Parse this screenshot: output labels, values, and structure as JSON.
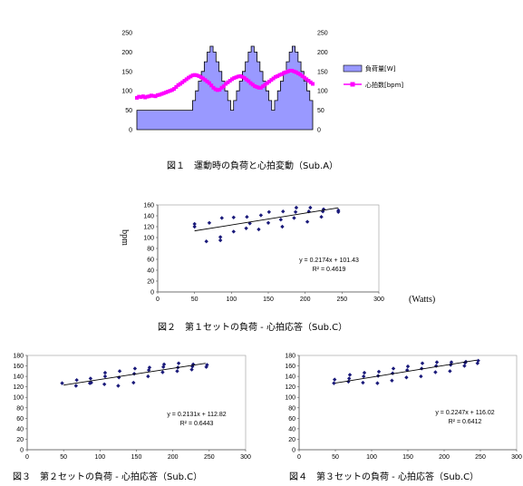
{
  "chart_data": [
    {
      "type": "area+line",
      "caption": "図１　運動時の負荷と心拍変動（Sub.A）",
      "left_ticks": [
        "0",
        "50",
        "100",
        "150",
        "200",
        "250"
      ],
      "right_ticks": [
        "0",
        "50",
        "100",
        "150",
        "200",
        "250"
      ],
      "ylim": [
        0,
        250
      ],
      "legend": [
        "負荷量[W]",
        "心拍数[bpm]"
      ],
      "colors": {
        "load_fill": "#9999ff",
        "load_edge": "#000000",
        "hr": "#ff00ff"
      },
      "load": [
        50,
        50,
        50,
        50,
        50,
        50,
        50,
        50,
        50,
        50,
        50,
        50,
        50,
        50,
        50,
        50,
        50,
        50,
        50,
        75,
        100,
        125,
        150,
        175,
        200,
        215,
        200,
        175,
        150,
        125,
        100,
        75,
        50,
        75,
        100,
        125,
        150,
        175,
        200,
        215,
        200,
        175,
        150,
        125,
        100,
        75,
        50,
        75,
        100,
        125,
        150,
        175,
        200,
        215,
        200,
        175,
        150,
        125,
        100,
        75,
        50
      ],
      "hr": [
        82,
        85,
        84,
        86,
        83,
        85,
        86,
        88,
        87,
        86,
        89,
        90,
        92,
        94,
        96,
        98,
        100,
        102,
        105,
        110,
        115,
        118,
        122,
        126,
        130,
        134,
        137,
        140,
        141,
        140,
        138,
        135,
        132,
        128,
        124,
        120,
        114,
        108,
        104,
        102,
        103,
        108,
        112,
        118,
        122,
        126,
        130,
        133,
        135,
        137,
        138,
        136,
        133,
        129,
        125,
        120,
        116,
        112,
        110,
        108,
        108,
        112,
        116,
        120,
        124,
        128,
        132,
        136,
        138,
        141,
        143,
        146,
        148,
        150,
        152,
        152,
        150,
        148,
        145,
        142,
        138,
        134,
        130,
        126,
        122,
        118
      ]
    },
    {
      "type": "scatter",
      "caption": "図２　第１セットの負荷 - 心拍応答（Sub.C）",
      "ylabel": "bpm",
      "xunit": "(Watts)",
      "xlim": [
        0,
        300
      ],
      "ylim": [
        0,
        160
      ],
      "xticks": [
        0,
        50,
        100,
        150,
        200,
        250,
        300
      ],
      "yticks": [
        0,
        20,
        40,
        60,
        80,
        100,
        120,
        140,
        160
      ],
      "equation": "y = 0.2174x + 101.43",
      "r2": "R² = 0.4619",
      "slope": 0.2174,
      "intercept": 101.43,
      "points": [
        [
          50,
          120
        ],
        [
          50,
          125
        ],
        [
          66,
          93
        ],
        [
          70,
          127
        ],
        [
          85,
          95
        ],
        [
          85,
          101
        ],
        [
          87,
          136
        ],
        [
          103,
          137
        ],
        [
          103,
          111
        ],
        [
          120,
          117
        ],
        [
          121,
          138
        ],
        [
          125,
          126
        ],
        [
          137,
          115
        ],
        [
          140,
          141
        ],
        [
          150,
          127
        ],
        [
          151,
          147
        ],
        [
          167,
          133
        ],
        [
          169,
          120
        ],
        [
          170,
          148
        ],
        [
          185,
          136
        ],
        [
          187,
          147
        ],
        [
          188,
          155
        ],
        [
          203,
          129
        ],
        [
          205,
          148
        ],
        [
          207,
          155
        ],
        [
          222,
          138
        ],
        [
          224,
          148
        ],
        [
          225,
          152
        ],
        [
          245,
          147
        ],
        [
          245,
          150
        ]
      ]
    },
    {
      "type": "scatter",
      "caption": "図３　第２セットの負荷 - 心拍応答（Sub.C）",
      "xlim": [
        0,
        300
      ],
      "ylim": [
        0,
        180
      ],
      "xticks": [
        0,
        50,
        100,
        150,
        200,
        250,
        300
      ],
      "yticks": [
        0,
        20,
        40,
        60,
        80,
        100,
        120,
        140,
        160,
        180
      ],
      "equation": "y = 0.2131x + 112.82",
      "r2": "R² = 0.6443",
      "slope": 0.2131,
      "intercept": 112.82,
      "points": [
        [
          48,
          127
        ],
        [
          67,
          122
        ],
        [
          68,
          133
        ],
        [
          86,
          127
        ],
        [
          87,
          136
        ],
        [
          88,
          128
        ],
        [
          106,
          125
        ],
        [
          107,
          140
        ],
        [
          107,
          147
        ],
        [
          125,
          122
        ],
        [
          126,
          138
        ],
        [
          127,
          150
        ],
        [
          146,
          128
        ],
        [
          147,
          145
        ],
        [
          148,
          155
        ],
        [
          166,
          140
        ],
        [
          167,
          152
        ],
        [
          168,
          157
        ],
        [
          186,
          148
        ],
        [
          187,
          158
        ],
        [
          188,
          163
        ],
        [
          206,
          150
        ],
        [
          207,
          157
        ],
        [
          208,
          165
        ],
        [
          226,
          153
        ],
        [
          227,
          159
        ],
        [
          228,
          163
        ],
        [
          246,
          158
        ],
        [
          247,
          162
        ]
      ]
    },
    {
      "type": "scatter",
      "caption": "図４　第３セットの負荷 - 心拍応答（Sub.C）",
      "xlim": [
        0,
        300
      ],
      "ylim": [
        0,
        180
      ],
      "xticks": [
        0,
        50,
        100,
        150,
        200,
        250,
        300
      ],
      "yticks": [
        0,
        20,
        40,
        60,
        80,
        100,
        120,
        140,
        160,
        180
      ],
      "equation": "y = 0.2247x + 116.02",
      "r2": "R² = 0.6412",
      "slope": 0.2247,
      "intercept": 116.02,
      "points": [
        [
          48,
          127
        ],
        [
          49,
          134
        ],
        [
          68,
          130
        ],
        [
          69,
          136
        ],
        [
          70,
          143
        ],
        [
          88,
          128
        ],
        [
          89,
          140
        ],
        [
          90,
          147
        ],
        [
          108,
          127
        ],
        [
          109,
          141
        ],
        [
          110,
          149
        ],
        [
          128,
          132
        ],
        [
          129,
          146
        ],
        [
          130,
          155
        ],
        [
          148,
          138
        ],
        [
          149,
          152
        ],
        [
          150,
          159
        ],
        [
          168,
          140
        ],
        [
          169,
          155
        ],
        [
          170,
          165
        ],
        [
          188,
          148
        ],
        [
          189,
          160
        ],
        [
          190,
          167
        ],
        [
          208,
          150
        ],
        [
          209,
          162
        ],
        [
          210,
          167
        ],
        [
          228,
          160
        ],
        [
          229,
          166
        ],
        [
          230,
          168
        ],
        [
          246,
          165
        ],
        [
          247,
          170
        ]
      ]
    }
  ]
}
